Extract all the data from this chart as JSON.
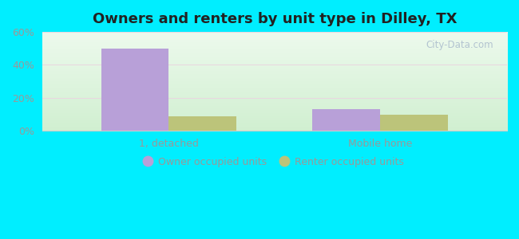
{
  "title": "Owners and renters by unit type in Dilley, TX",
  "categories": [
    "1, detached",
    "Mobile home"
  ],
  "owner_values": [
    50,
    13
  ],
  "renter_values": [
    9,
    10
  ],
  "owner_color": "#b8a0d8",
  "renter_color": "#bcc47a",
  "ylim": [
    0,
    60
  ],
  "yticks": [
    0,
    20,
    40,
    60
  ],
  "ytick_labels": [
    "0%",
    "20%",
    "40%",
    "60%"
  ],
  "bar_width": 0.32,
  "outer_bg": "#00eeff",
  "watermark": "City-Data.com",
  "legend_labels": [
    "Owner occupied units",
    "Renter occupied units"
  ],
  "title_fontsize": 13,
  "tick_color": "#999999",
  "grid_color": "#e0e8d0"
}
